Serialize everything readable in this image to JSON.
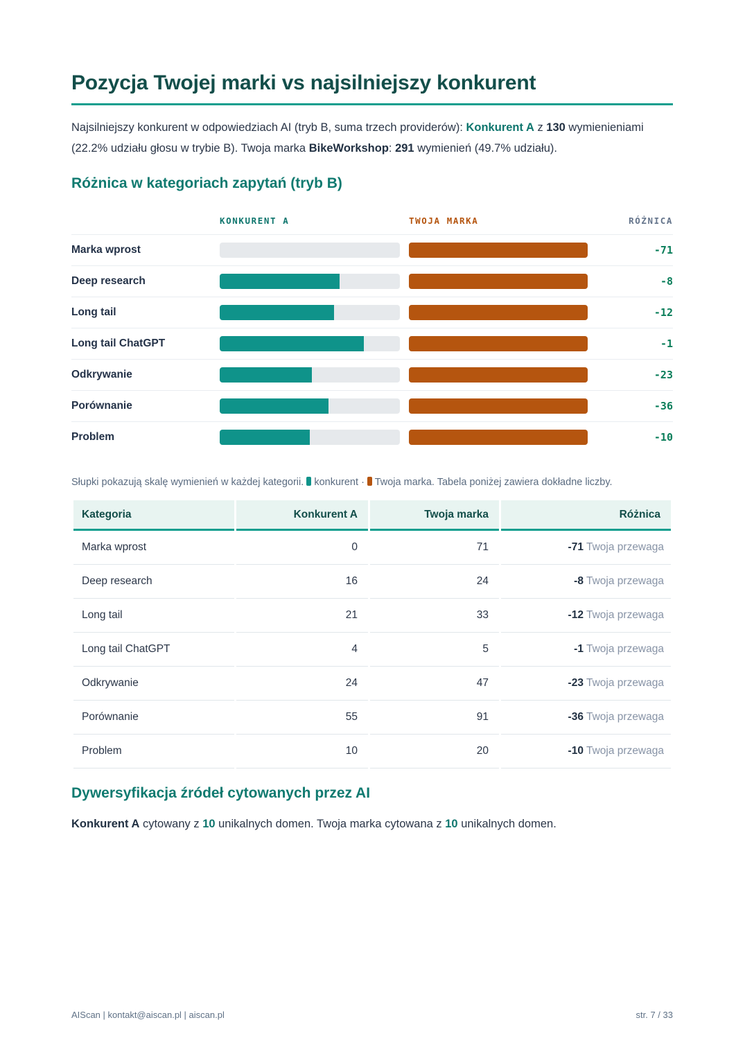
{
  "header": {
    "title": "Pozycja Twojej marki vs najsilniejszy konkurent"
  },
  "intro": {
    "t1": "Najsilniejszy konkurent w odpowiedziach AI (tryb B, suma trzech providerów): ",
    "competitor": "Konkurent A",
    "t2": " z ",
    "competitor_mentions": "130",
    "t3": " wymienieniami (22.2% udziału głosu w trybie B). Twoja marka ",
    "brand": "BikeWorkshop",
    "t4": ": ",
    "brand_mentions": "291",
    "t5": " wymienień (49.7% udziału)."
  },
  "chart_section": {
    "heading": "Różnica w kategoriach zapytań (tryb B)",
    "col_competitor": "KONKURENT A",
    "col_brand": "TWOJA MARKA",
    "col_diff": "RÓŻNICA"
  },
  "chart_data": {
    "type": "bar",
    "title": "Różnica w kategoriach zapytań (tryb B)",
    "categories": [
      "Marka wprost",
      "Deep research",
      "Long tail",
      "Long tail ChatGPT",
      "Odkrywanie",
      "Porównanie",
      "Problem"
    ],
    "series": [
      {
        "name": "Konkurent A",
        "color": "#0f938a",
        "values": [
          0,
          16,
          21,
          4,
          24,
          55,
          10
        ]
      },
      {
        "name": "Twoja marka",
        "color": "#b5550f",
        "values": [
          71,
          24,
          33,
          5,
          47,
          91,
          20
        ]
      }
    ],
    "diff": [
      -71,
      -8,
      -12,
      -1,
      -23,
      -36,
      -10
    ],
    "bar_scale": "each bar filled as value / max(row values)",
    "track_color": "#e6e9ec",
    "legend_position": "caption below chart",
    "grid": false
  },
  "caption": {
    "text_before": "Słupki pokazują skalę wymienień w każdej kategorii.",
    "legend_competitor_label": "konkurent",
    "separator": "·",
    "legend_brand_label": "Twoja marka.",
    "text_after": "Tabela poniżej zawiera dokładne liczby."
  },
  "table": {
    "headers": [
      "Kategoria",
      "Konkurent A",
      "Twoja marka",
      "Różnica"
    ],
    "rows": [
      {
        "category": "Marka wprost",
        "competitor": "0",
        "brand": "71",
        "diff": "-71",
        "note": "Twoja przewaga"
      },
      {
        "category": "Deep research",
        "competitor": "16",
        "brand": "24",
        "diff": "-8",
        "note": "Twoja przewaga"
      },
      {
        "category": "Long tail",
        "competitor": "21",
        "brand": "33",
        "diff": "-12",
        "note": "Twoja przewaga"
      },
      {
        "category": "Long tail ChatGPT",
        "competitor": "4",
        "brand": "5",
        "diff": "-1",
        "note": "Twoja przewaga"
      },
      {
        "category": "Odkrywanie",
        "competitor": "24",
        "brand": "47",
        "diff": "-23",
        "note": "Twoja przewaga"
      },
      {
        "category": "Porównanie",
        "competitor": "55",
        "brand": "91",
        "diff": "-36",
        "note": "Twoja przewaga"
      },
      {
        "category": "Problem",
        "competitor": "10",
        "brand": "20",
        "diff": "-10",
        "note": "Twoja przewaga"
      }
    ]
  },
  "sources": {
    "heading": "Dywersyfikacja źródeł cytowanych przez AI",
    "bold_competitor": "Konkurent A",
    "t1": " cytowany z ",
    "competitor_domains": "10",
    "t2": " unikalnych domen. Twoja marka cytowana z ",
    "brand_domains": "10",
    "t3": " unikalnych domen."
  },
  "footer": {
    "left": "AIScan | kontakt@aiscan.pl | aiscan.pl",
    "right": "str. 7 / 33"
  },
  "colors": {
    "title": "#134e4a",
    "accent_rule": "#119e8e",
    "heading_teal": "#107a70",
    "competitor_teal": "#0f938a",
    "brand_orange": "#b5550f",
    "diff_green": "#0a7e5a",
    "table_header_bg": "#e8f4f1",
    "muted_text": "#5a6b80",
    "footer_text": "#5f7186"
  }
}
